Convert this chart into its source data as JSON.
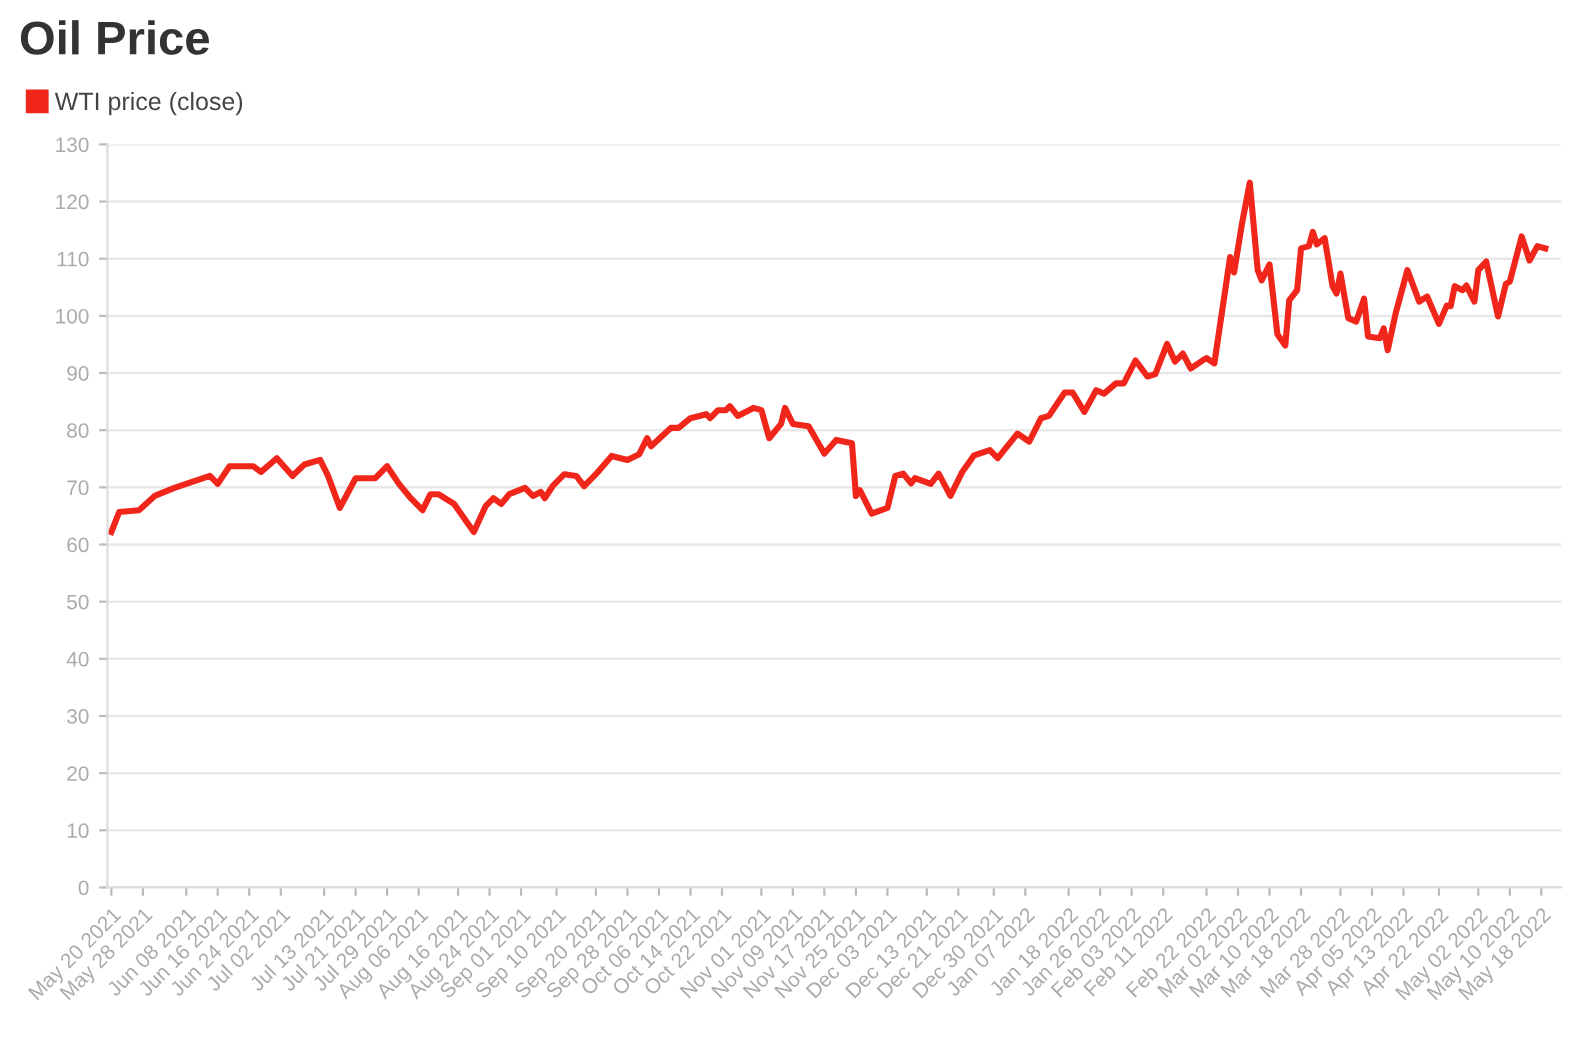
{
  "chart_data": {
    "type": "line",
    "title": "Oil Price",
    "legend": "top left",
    "grid": "y",
    "marker": "none",
    "line_style": "solid",
    "ylim": [
      0,
      130
    ],
    "yticks": [
      0,
      10,
      20,
      30,
      40,
      50,
      60,
      70,
      80,
      90,
      100,
      110,
      120,
      130
    ],
    "xlim": [
      "2021-05-19",
      "2022-05-23"
    ],
    "xticks": [
      {
        "value": "2021-05-20",
        "label": "May 20 2021"
      },
      {
        "value": "2021-05-28",
        "label": "May 28 2021"
      },
      {
        "value": "2021-06-08",
        "label": "Jun 08 2021"
      },
      {
        "value": "2021-06-16",
        "label": "Jun 16 2021"
      },
      {
        "value": "2021-06-24",
        "label": "Jun 24 2021"
      },
      {
        "value": "2021-07-02",
        "label": "Jul 02 2021"
      },
      {
        "value": "2021-07-13",
        "label": "Jul 13 2021"
      },
      {
        "value": "2021-07-21",
        "label": "Jul 21 2021"
      },
      {
        "value": "2021-07-29",
        "label": "Jul 29 2021"
      },
      {
        "value": "2021-08-06",
        "label": "Aug 06 2021"
      },
      {
        "value": "2021-08-16",
        "label": "Aug 16 2021"
      },
      {
        "value": "2021-08-24",
        "label": "Aug 24 2021"
      },
      {
        "value": "2021-09-01",
        "label": "Sep 01 2021"
      },
      {
        "value": "2021-09-10",
        "label": "Sep 10 2021"
      },
      {
        "value": "2021-09-20",
        "label": "Sep 20 2021"
      },
      {
        "value": "2021-09-28",
        "label": "Sep 28 2021"
      },
      {
        "value": "2021-10-06",
        "label": "Oct 06 2021"
      },
      {
        "value": "2021-10-14",
        "label": "Oct 14 2021"
      },
      {
        "value": "2021-10-22",
        "label": "Oct 22 2021"
      },
      {
        "value": "2021-11-01",
        "label": "Nov 01 2021"
      },
      {
        "value": "2021-11-09",
        "label": "Nov 09 2021"
      },
      {
        "value": "2021-11-17",
        "label": "Nov 17 2021"
      },
      {
        "value": "2021-11-25",
        "label": "Nov 25 2021"
      },
      {
        "value": "2021-12-03",
        "label": "Dec 03 2021"
      },
      {
        "value": "2021-12-13",
        "label": "Dec 13 2021"
      },
      {
        "value": "2021-12-21",
        "label": "Dec 21 2021"
      },
      {
        "value": "2021-12-30",
        "label": "Dec 30 2021"
      },
      {
        "value": "2022-01-07",
        "label": "Jan 07 2022"
      },
      {
        "value": "2022-01-18",
        "label": "Jan 18 2022"
      },
      {
        "value": "2022-01-26",
        "label": "Jan 26 2022"
      },
      {
        "value": "2022-02-03",
        "label": "Feb 03 2022"
      },
      {
        "value": "2022-02-11",
        "label": "Feb 11 2022"
      },
      {
        "value": "2022-02-22",
        "label": "Feb 22 2022"
      },
      {
        "value": "2022-03-02",
        "label": "Mar 02 2022"
      },
      {
        "value": "2022-03-10",
        "label": "Mar 10 2022"
      },
      {
        "value": "2022-03-18",
        "label": "Mar 18 2022"
      },
      {
        "value": "2022-03-28",
        "label": "Mar 28 2022"
      },
      {
        "value": "2022-04-05",
        "label": "Apr 05 2022"
      },
      {
        "value": "2022-04-13",
        "label": "Apr 13 2022"
      },
      {
        "value": "2022-04-22",
        "label": "Apr 22 2022"
      },
      {
        "value": "2022-05-02",
        "label": "May 02 2022"
      },
      {
        "value": "2022-05-10",
        "label": "May 10 2022"
      },
      {
        "value": "2022-05-18",
        "label": "May 18 2022"
      }
    ],
    "x": [
      "2021-05-20",
      "2021-05-22",
      "2021-05-27",
      "2021-05-31",
      "2021-06-05",
      "2021-06-14",
      "2021-06-16",
      "2021-06-19",
      "2021-06-25",
      "2021-06-27",
      "2021-07-01",
      "2021-07-05",
      "2021-07-08",
      "2021-07-12",
      "2021-07-14",
      "2021-07-17",
      "2021-07-21",
      "2021-07-26",
      "2021-07-29",
      "2021-08-01",
      "2021-08-04",
      "2021-08-07",
      "2021-08-09",
      "2021-08-11",
      "2021-08-15",
      "2021-08-20",
      "2021-08-23",
      "2021-08-25",
      "2021-08-27",
      "2021-08-29",
      "2021-09-02",
      "2021-09-04",
      "2021-09-06",
      "2021-09-07",
      "2021-09-09",
      "2021-09-12",
      "2021-09-15",
      "2021-09-17",
      "2021-09-20",
      "2021-09-24",
      "2021-09-28",
      "2021-10-01",
      "2021-10-03",
      "2021-10-04",
      "2021-10-09",
      "2021-10-11",
      "2021-10-14",
      "2021-10-18",
      "2021-10-19",
      "2021-10-21",
      "2021-10-23",
      "2021-10-24",
      "2021-10-26",
      "2021-10-30",
      "2021-11-01",
      "2021-11-03",
      "2021-11-06",
      "2021-11-07",
      "2021-11-09",
      "2021-11-13",
      "2021-11-15",
      "2021-11-17",
      "2021-11-20",
      "2021-11-24",
      "2021-11-25",
      "2021-11-26",
      "2021-11-29",
      "2021-12-03",
      "2021-12-05",
      "2021-12-07",
      "2021-12-09",
      "2021-12-10",
      "2021-12-14",
      "2021-12-16",
      "2021-12-19",
      "2021-12-22",
      "2021-12-25",
      "2021-12-29",
      "2021-12-31",
      "2022-01-05",
      "2022-01-08",
      "2022-01-11",
      "2022-01-13",
      "2022-01-17",
      "2022-01-19",
      "2022-01-22",
      "2022-01-25",
      "2022-01-27",
      "2022-01-30",
      "2022-02-01",
      "2022-02-04",
      "2022-02-07",
      "2022-02-09",
      "2022-02-12",
      "2022-02-14",
      "2022-02-16",
      "2022-02-18",
      "2022-02-21",
      "2022-02-22",
      "2022-02-24",
      "2022-02-28",
      "2022-03-01",
      "2022-03-03",
      "2022-03-05",
      "2022-03-07",
      "2022-03-08",
      "2022-03-10",
      "2022-03-12",
      "2022-03-14",
      "2022-03-15",
      "2022-03-17",
      "2022-03-18",
      "2022-03-20",
      "2022-03-21",
      "2022-03-22",
      "2022-03-24",
      "2022-03-26",
      "2022-03-27",
      "2022-03-28",
      "2022-03-30",
      "2022-04-01",
      "2022-04-03",
      "2022-04-04",
      "2022-04-07",
      "2022-04-08",
      "2022-04-09",
      "2022-04-11",
      "2022-04-14",
      "2022-04-17",
      "2022-04-19",
      "2022-04-22",
      "2022-04-24",
      "2022-04-25",
      "2022-04-26",
      "2022-04-28",
      "2022-04-29",
      "2022-05-01",
      "2022-05-02",
      "2022-05-04",
      "2022-05-07",
      "2022-05-09",
      "2022-05-10",
      "2022-05-13",
      "2022-05-15",
      "2022-05-17",
      "2022-05-19"
    ],
    "series": [
      {
        "name": "WTI price (close)",
        "color": "#f0261b",
        "values": [
          62.2,
          65.7,
          66,
          68.5,
          69.9,
          72,
          70.6,
          73.7,
          73.7,
          72.7,
          75.1,
          72,
          74,
          74.8,
          72,
          66.4,
          71.6,
          71.6,
          73.7,
          70.6,
          68.1,
          66,
          68.8,
          68.8,
          67.1,
          62.2,
          66.7,
          68.1,
          67.1,
          68.8,
          69.9,
          68.5,
          69.2,
          68.1,
          70.2,
          72.3,
          72,
          70.2,
          72.3,
          75.5,
          74.8,
          75.8,
          78.6,
          77.2,
          80.4,
          80.4,
          82.1,
          82.8,
          82.1,
          83.5,
          83.5,
          84.2,
          82.5,
          83.9,
          83.5,
          78.6,
          81.1,
          83.9,
          81.1,
          80.7,
          78.3,
          75.9,
          78.3,
          77.7,
          68.5,
          69.5,
          65.4,
          66.4,
          72,
          72.4,
          70.7,
          71.6,
          70.6,
          72.4,
          68.5,
          72.7,
          75.6,
          76.5,
          75.1,
          79.4,
          78,
          82.1,
          82.5,
          86.6,
          86.6,
          83.2,
          87,
          86.4,
          88.2,
          88.2,
          92.2,
          89.4,
          89.8,
          95.1,
          92,
          93.4,
          90.8,
          92.2,
          92.6,
          91.7,
          110.3,
          107.6,
          116.1,
          123.3,
          108,
          106.2,
          109,
          96.8,
          94.8,
          102.7,
          104.5,
          111.8,
          112.2,
          114.7,
          112.5,
          113.6,
          105.2,
          103.9,
          107.4,
          99.6,
          99,
          103,
          96.4,
          96.1,
          97.8,
          94,
          100.4,
          108,
          102.5,
          103.4,
          98.6,
          101.8,
          101.7,
          105.2,
          104.5,
          105.3,
          102.5,
          108,
          109.5,
          99.9,
          105.6,
          106,
          113.9,
          109.7,
          112.2,
          111.8
        ]
      }
    ]
  }
}
